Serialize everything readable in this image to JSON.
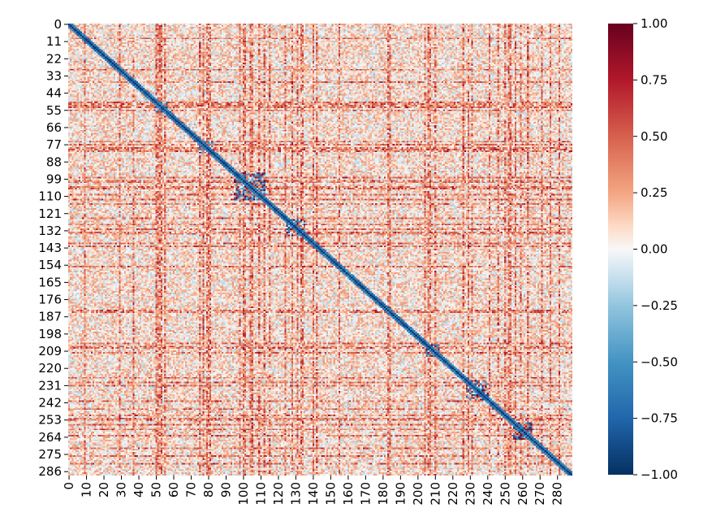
{
  "chart_data": {
    "type": "heatmap",
    "title": "",
    "xlabel": "",
    "ylabel": "",
    "size": 289,
    "x_ticks": [
      "0",
      "10",
      "20",
      "30",
      "40",
      "50",
      "60",
      "70",
      "80",
      "90",
      "100",
      "110",
      "120",
      "130",
      "140",
      "150",
      "160",
      "170",
      "180",
      "190",
      "200",
      "210",
      "220",
      "230",
      "240",
      "250",
      "260",
      "270",
      "280"
    ],
    "y_ticks": [
      "0",
      "11",
      "22",
      "33",
      "44",
      "55",
      "66",
      "77",
      "88",
      "99",
      "110",
      "121",
      "132",
      "143",
      "154",
      "165",
      "176",
      "187",
      "198",
      "209",
      "220",
      "231",
      "242",
      "253",
      "264",
      "275",
      "286"
    ],
    "colorbar": {
      "colormap": "RdBu_r",
      "vmin": -1.0,
      "vmax": 1.0,
      "ticks": [
        "1.00",
        "0.75",
        "0.50",
        "0.25",
        "0.00",
        "−0.25",
        "−0.50",
        "−0.75",
        "−1.00"
      ],
      "tick_values": [
        1.0,
        0.75,
        0.5,
        0.25,
        0.0,
        -0.25,
        -0.5,
        -0.75,
        -1.0
      ]
    },
    "diagonal_value": -1.0,
    "notable_blocks": [
      {
        "range": [
          50,
          56
        ],
        "pattern": "strong correlations"
      },
      {
        "range": [
          75,
          82
        ],
        "pattern": "strong correlations"
      },
      {
        "range": [
          95,
          112
        ],
        "pattern": "strong correlations"
      },
      {
        "range": [
          125,
          135
        ],
        "pattern": "strong correlations"
      },
      {
        "range": [
          205,
          212
        ],
        "pattern": "strong correlations"
      },
      {
        "range": [
          228,
          240
        ],
        "pattern": "moderate positive"
      },
      {
        "range": [
          255,
          265
        ],
        "pattern": "moderate correlations"
      }
    ]
  }
}
